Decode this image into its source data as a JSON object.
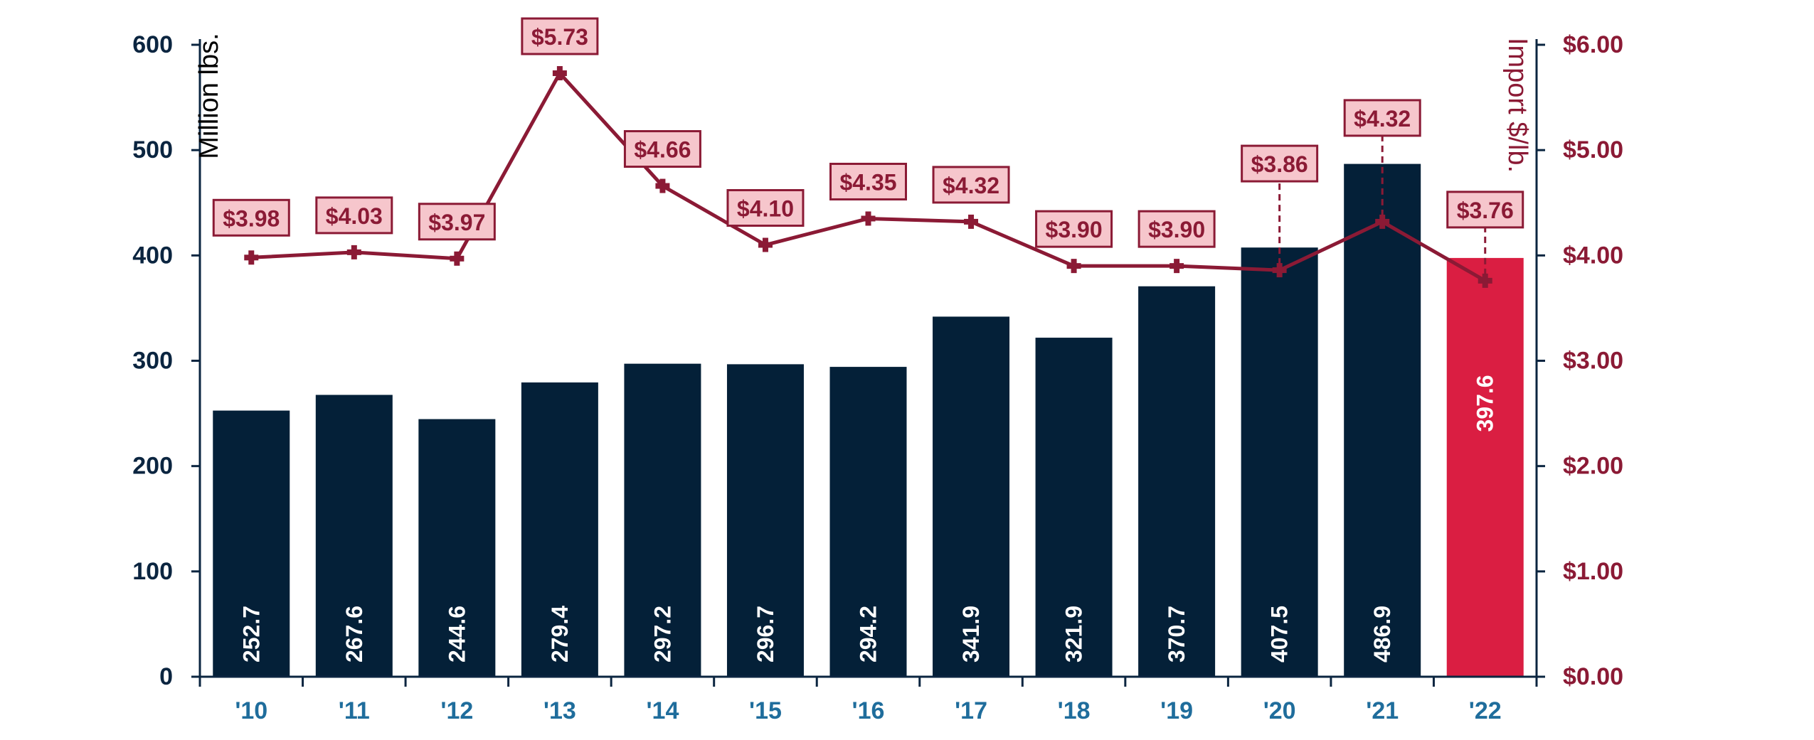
{
  "chart_data": {
    "type": "bar",
    "categories": [
      "'10",
      "'11",
      "'12",
      "'13",
      "'14",
      "'15",
      "'16",
      "'17",
      "'18",
      "'19",
      "'20",
      "'21",
      "'22"
    ],
    "series": [
      {
        "kind": "bar",
        "axis": "left",
        "values": [
          252.7,
          267.6,
          244.6,
          279.4,
          297.2,
          296.7,
          294.2,
          341.9,
          321.9,
          370.7,
          407.5,
          486.9,
          397.6
        ],
        "labels": [
          "252.7",
          "267.6",
          "244.6",
          "279.4",
          "297.2",
          "296.7",
          "294.2",
          "341.9",
          "321.9",
          "370.7",
          "407.5",
          "486.9",
          "397.6"
        ],
        "color": "#042038",
        "highlight_color": "#da1e42",
        "highlight_index": 12
      },
      {
        "kind": "line",
        "axis": "right",
        "values": [
          3.98,
          4.03,
          3.97,
          5.73,
          4.66,
          4.1,
          4.35,
          4.32,
          3.9,
          3.9,
          3.86,
          4.32,
          3.76
        ],
        "labels": [
          "$3.98",
          "$4.03",
          "$3.97",
          "$5.73",
          "$4.66",
          "$4.10",
          "$4.35",
          "$4.32",
          "$3.90",
          "$3.90",
          "$3.86",
          "$4.32",
          "$3.76"
        ],
        "color": "#8b1a35",
        "label_fill": "#f6c6cc"
      }
    ],
    "ylabel": "Million lbs.",
    "y2label": "Import $/lb.",
    "ylim": [
      0,
      600
    ],
    "y2lim": [
      0,
      6
    ],
    "y_ticks": [
      "0",
      "100",
      "200",
      "300",
      "400",
      "500",
      "600"
    ],
    "y2_ticks": [
      "$0.00",
      "$1.00",
      "$2.00",
      "$3.00",
      "$4.00",
      "$5.00",
      "$6.00"
    ],
    "grid": false,
    "colors": {
      "left_axis_text": "#0b2540",
      "right_axis_text": "#8b1a35",
      "x_axis_text": "#1f6d9c",
      "axis_line": "#0b2540"
    }
  }
}
